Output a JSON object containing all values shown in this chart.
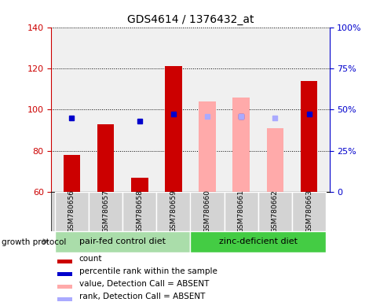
{
  "title": "GDS4614 / 1376432_at",
  "samples": [
    "GSM780656",
    "GSM780657",
    "GSM780658",
    "GSM780659",
    "GSM780660",
    "GSM780661",
    "GSM780662",
    "GSM780663"
  ],
  "groups": [
    "pair-fed control diet",
    "zinc-deficient diet"
  ],
  "ylim_left": [
    60,
    140
  ],
  "ylim_right": [
    0,
    100
  ],
  "yticks_left": [
    60,
    80,
    100,
    120,
    140
  ],
  "yticks_right": [
    0,
    25,
    50,
    75,
    100
  ],
  "count_values": [
    78,
    93,
    67,
    121,
    null,
    null,
    null,
    114
  ],
  "rank_values": [
    45,
    null,
    43,
    47,
    null,
    46,
    null,
    47
  ],
  "absent_value_values": [
    null,
    null,
    null,
    null,
    104,
    106,
    91,
    null
  ],
  "absent_rank_values": [
    null,
    null,
    null,
    null,
    46,
    46,
    45,
    null
  ],
  "bar_width": 0.5,
  "count_color": "#cc0000",
  "rank_color": "#0000cc",
  "absent_value_color": "#ffaaaa",
  "absent_rank_color": "#aaaaff",
  "legend_items": [
    "count",
    "percentile rank within the sample",
    "value, Detection Call = ABSENT",
    "rank, Detection Call = ABSENT"
  ],
  "legend_colors": [
    "#cc0000",
    "#0000cc",
    "#ffaaaa",
    "#aaaaff"
  ],
  "xlabel_group": "growth protocol",
  "plot_bg_color": "#f0f0f0",
  "left_axis_color": "#cc0000",
  "right_axis_color": "#0000cc",
  "group1_color": "#aaddaa",
  "group2_color": "#44cc44"
}
